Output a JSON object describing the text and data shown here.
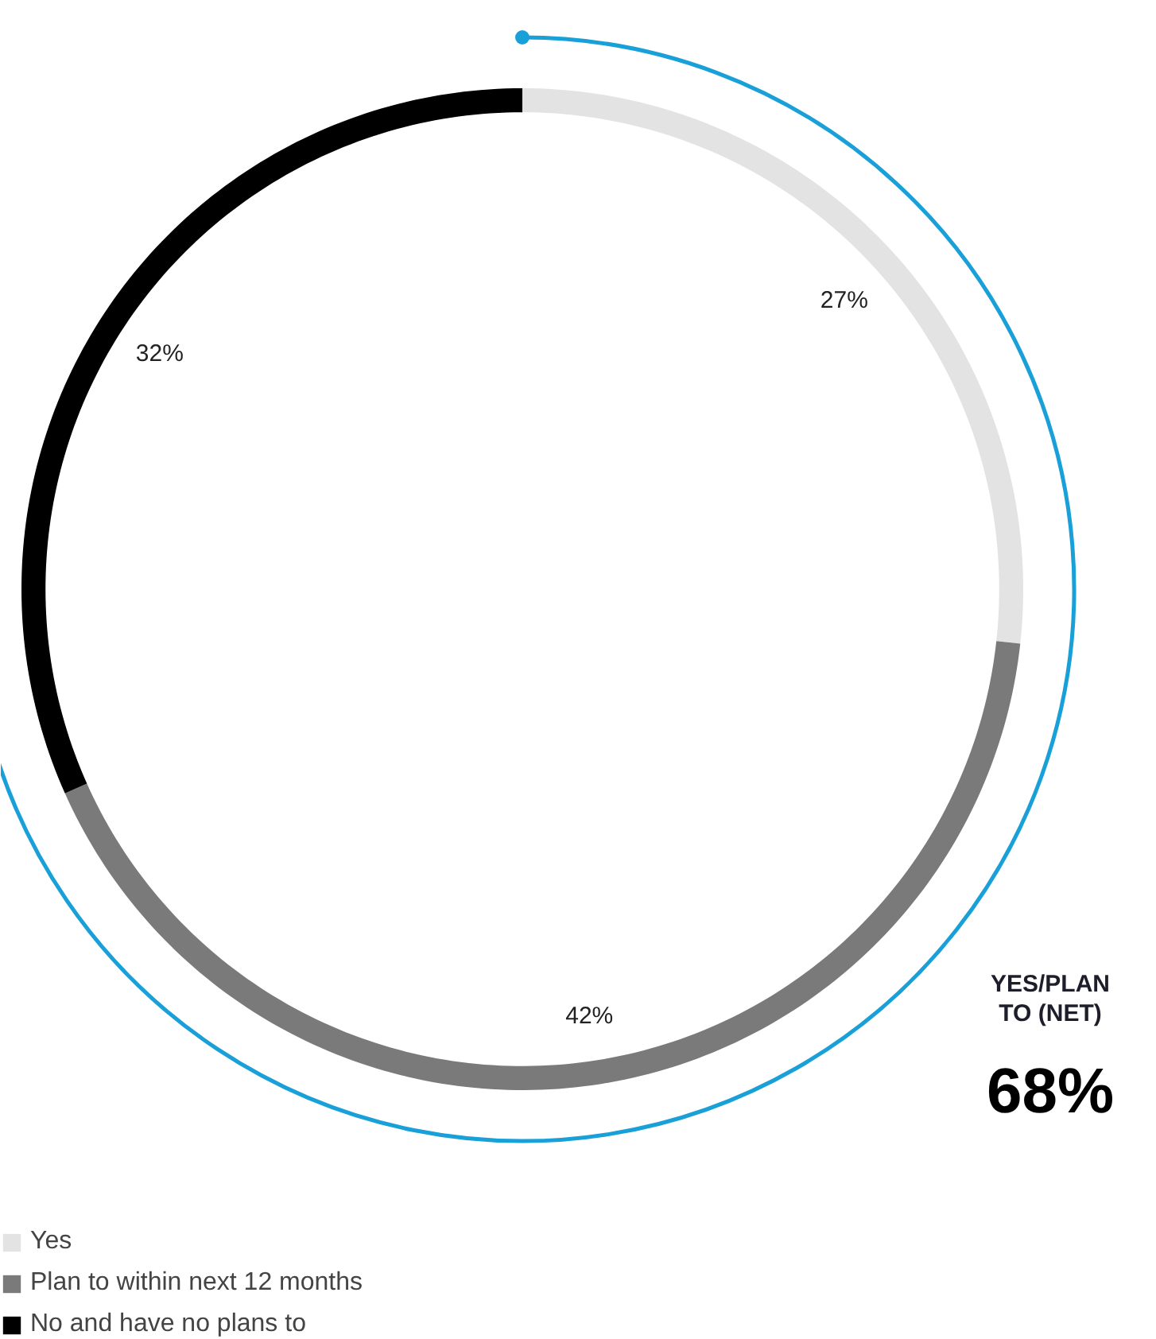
{
  "chart_data": {
    "type": "donut",
    "categories": [
      "Yes",
      "Plan to within next 12 months",
      "No and have no plans to"
    ],
    "values": [
      27,
      42,
      32
    ],
    "colors": [
      "#e3e3e3",
      "#7a7a7a",
      "#000000"
    ],
    "value_labels": [
      "27%",
      "42%",
      "32%"
    ],
    "legend": "bottom left",
    "annotations": [
      "YES/PLAN\nTO (NET)",
      "68%"
    ]
  }
}
